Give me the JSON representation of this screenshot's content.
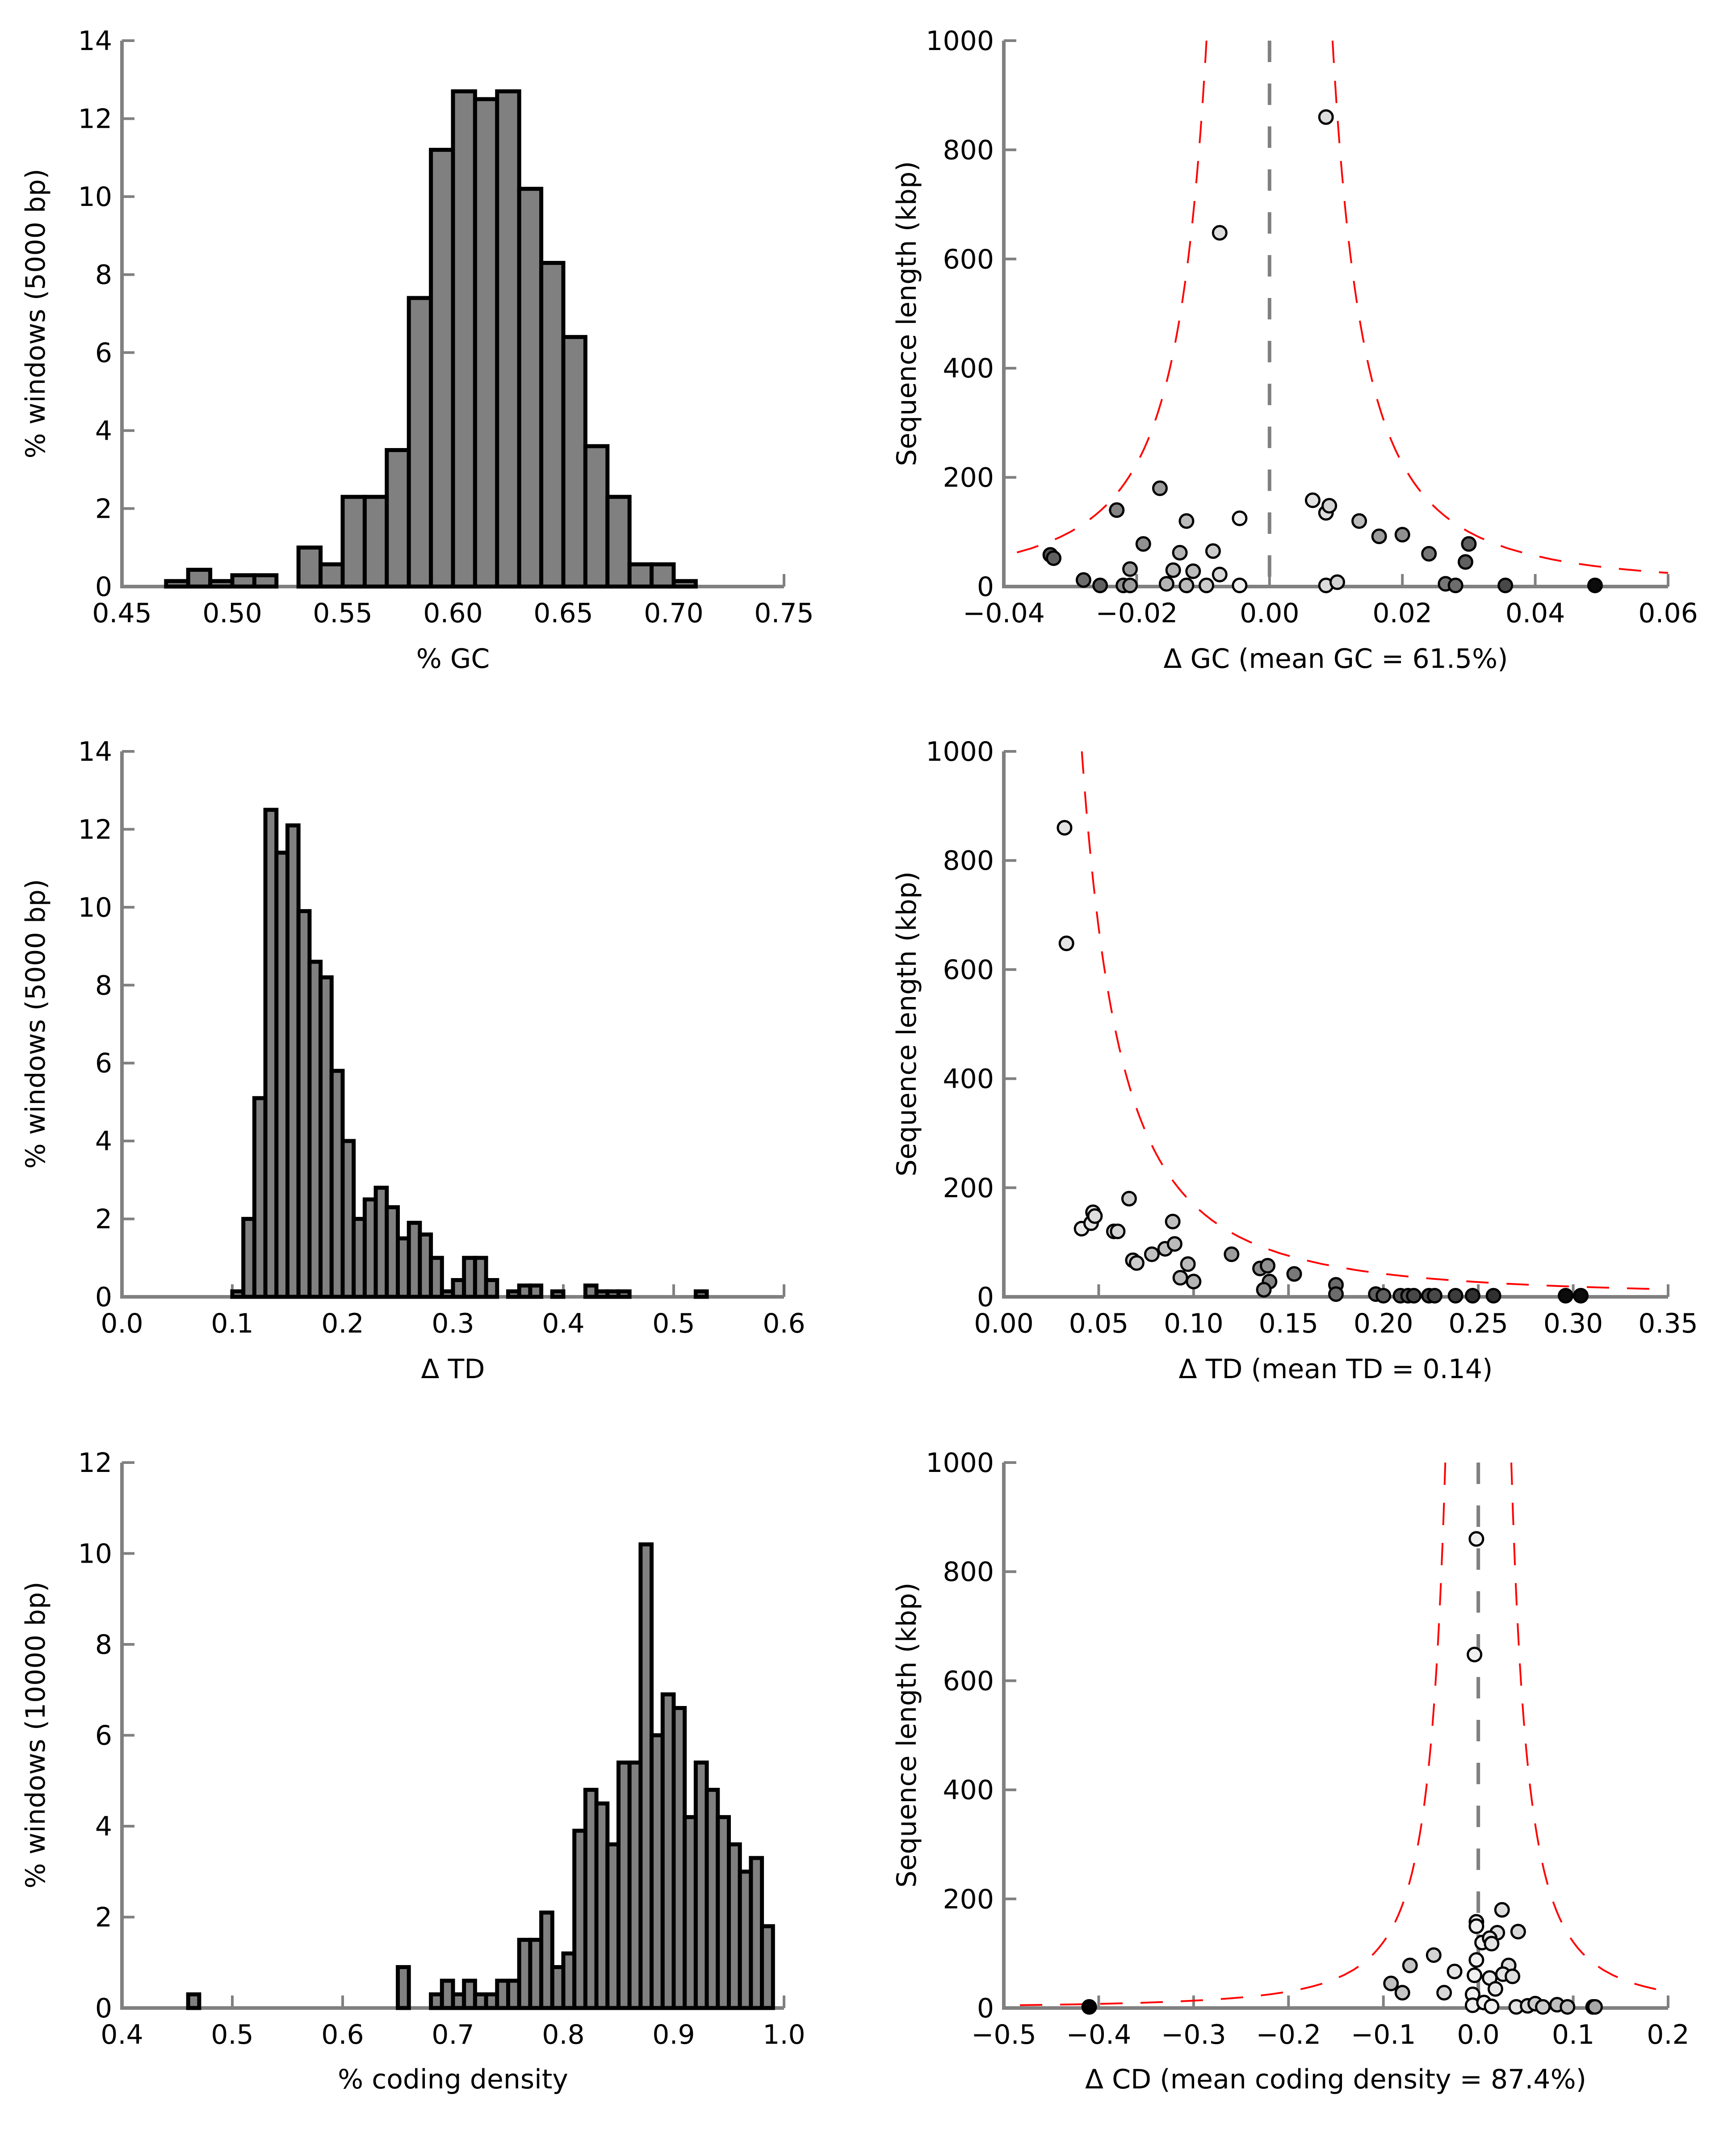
{
  "chart_data": [
    {
      "id": "gc-hist",
      "type": "bar",
      "xlabel": "% GC",
      "ylabel": "% windows (5000 bp)",
      "xlim": [
        0.45,
        0.75
      ],
      "ylim": [
        0,
        14
      ],
      "xticks": [
        0.45,
        0.5,
        0.55,
        0.6,
        0.65,
        0.7,
        0.75
      ],
      "xtick_labels": [
        "0.45",
        "0.50",
        "0.55",
        "0.60",
        "0.65",
        "0.70",
        "0.75"
      ],
      "yticks": [
        0,
        2,
        4,
        6,
        8,
        10,
        12,
        14
      ],
      "ytick_labels": [
        "0",
        "2",
        "4",
        "6",
        "8",
        "10",
        "12",
        "14"
      ],
      "bin_width": 0.01,
      "bins": [
        0.47,
        0.48,
        0.49,
        0.5,
        0.51,
        0.52,
        0.53,
        0.54,
        0.55,
        0.56,
        0.57,
        0.58,
        0.59,
        0.6,
        0.61,
        0.62,
        0.63,
        0.64,
        0.65,
        0.66,
        0.67,
        0.68,
        0.69,
        0.7
      ],
      "values": [
        0.14,
        0.43,
        0.14,
        0.29,
        0.29,
        0,
        1.0,
        0.57,
        2.3,
        2.3,
        3.5,
        7.4,
        11.2,
        12.7,
        12.5,
        12.7,
        10.2,
        8.3,
        6.4,
        3.6,
        2.3,
        0.57,
        0.57,
        0.14
      ]
    },
    {
      "id": "gc-scatter",
      "type": "scatter",
      "xlabel": "Δ GC (mean GC = 61.5%)",
      "ylabel": "Sequence length (kbp)",
      "xlim": [
        -0.04,
        0.06
      ],
      "ylim": [
        0,
        1000
      ],
      "xticks": [
        -0.04,
        -0.02,
        0.0,
        0.02,
        0.04,
        0.06
      ],
      "xtick_labels": [
        "−0.04",
        "−0.02",
        "0.00",
        "0.02",
        "0.04",
        "0.06"
      ],
      "yticks": [
        0,
        200,
        400,
        600,
        800,
        1000
      ],
      "ytick_labels": [
        "0",
        "200",
        "400",
        "600",
        "800",
        "1000"
      ],
      "reference_line_x": 0.0,
      "envelope": {
        "scale": 0.3,
        "center": 0.0,
        "side": "both"
      },
      "points": [
        {
          "x": 0.0085,
          "y": 860,
          "shade": 0.92
        },
        {
          "x": -0.0075,
          "y": 648,
          "shade": 0.92
        },
        {
          "x": -0.0165,
          "y": 180,
          "shade": 0.65
        },
        {
          "x": -0.023,
          "y": 140,
          "shade": 0.55
        },
        {
          "x": -0.0125,
          "y": 120,
          "shade": 0.78
        },
        {
          "x": -0.0045,
          "y": 125,
          "shade": 1.0
        },
        {
          "x": 0.0065,
          "y": 158,
          "shade": 0.94
        },
        {
          "x": 0.0085,
          "y": 135,
          "shade": 0.92
        },
        {
          "x": 0.009,
          "y": 148,
          "shade": 0.88
        },
        {
          "x": 0.0135,
          "y": 120,
          "shade": 0.78
        },
        {
          "x": 0.0165,
          "y": 92,
          "shade": 0.65
        },
        {
          "x": 0.02,
          "y": 95,
          "shade": 0.6
        },
        {
          "x": 0.024,
          "y": 60,
          "shade": 0.5
        },
        {
          "x": 0.03,
          "y": 78,
          "shade": 0.4
        },
        {
          "x": 0.0295,
          "y": 45,
          "shade": 0.4
        },
        {
          "x": -0.033,
          "y": 58,
          "shade": 0.35
        },
        {
          "x": -0.0325,
          "y": 52,
          "shade": 0.4
        },
        {
          "x": -0.019,
          "y": 78,
          "shade": 0.6
        },
        {
          "x": -0.0135,
          "y": 62,
          "shade": 0.75
        },
        {
          "x": -0.0085,
          "y": 65,
          "shade": 0.85
        },
        {
          "x": -0.0115,
          "y": 28,
          "shade": 0.78
        },
        {
          "x": -0.0145,
          "y": 30,
          "shade": 0.75
        },
        {
          "x": -0.0075,
          "y": 22,
          "shade": 0.9
        },
        {
          "x": -0.021,
          "y": 32,
          "shade": 0.65
        },
        {
          "x": -0.028,
          "y": 12,
          "shade": 0.45
        },
        {
          "x": -0.0255,
          "y": 2,
          "shade": 0.4
        },
        {
          "x": -0.022,
          "y": 2,
          "shade": 0.6
        },
        {
          "x": -0.021,
          "y": 2,
          "shade": 0.65
        },
        {
          "x": -0.0155,
          "y": 5,
          "shade": 0.75
        },
        {
          "x": -0.0125,
          "y": 2,
          "shade": 0.78
        },
        {
          "x": -0.0095,
          "y": 2,
          "shade": 0.85
        },
        {
          "x": -0.0045,
          "y": 2,
          "shade": 1.0
        },
        {
          "x": 0.0085,
          "y": 2,
          "shade": 0.92
        },
        {
          "x": 0.0102,
          "y": 8,
          "shade": 0.88
        },
        {
          "x": 0.0265,
          "y": 5,
          "shade": 0.5
        },
        {
          "x": 0.028,
          "y": 2,
          "shade": 0.45
        },
        {
          "x": 0.0355,
          "y": 2,
          "shade": 0.3
        },
        {
          "x": 0.049,
          "y": 2,
          "shade": 0.05
        }
      ]
    },
    {
      "id": "td-hist",
      "type": "bar",
      "xlabel": "Δ TD",
      "ylabel": "% windows (5000 bp)",
      "xlim": [
        0.0,
        0.6
      ],
      "ylim": [
        0,
        14
      ],
      "xticks": [
        0.0,
        0.1,
        0.2,
        0.3,
        0.4,
        0.5,
        0.6
      ],
      "xtick_labels": [
        "0.0",
        "0.1",
        "0.2",
        "0.3",
        "0.4",
        "0.5",
        "0.6"
      ],
      "yticks": [
        0,
        2,
        4,
        6,
        8,
        10,
        12,
        14
      ],
      "ytick_labels": [
        "0",
        "2",
        "4",
        "6",
        "8",
        "10",
        "12",
        "14"
      ],
      "bin_width": 0.01,
      "bins": [
        0.1,
        0.11,
        0.12,
        0.13,
        0.14,
        0.15,
        0.16,
        0.17,
        0.18,
        0.19,
        0.2,
        0.21,
        0.22,
        0.23,
        0.24,
        0.25,
        0.26,
        0.27,
        0.28,
        0.29,
        0.3,
        0.31,
        0.32,
        0.33,
        0.35,
        0.36,
        0.37,
        0.39,
        0.42,
        0.43,
        0.44,
        0.45,
        0.52
      ],
      "values": [
        0.14,
        2.0,
        5.1,
        12.5,
        11.4,
        12.1,
        9.9,
        8.6,
        8.2,
        5.8,
        4.0,
        2.0,
        2.5,
        2.8,
        2.3,
        1.5,
        1.9,
        1.6,
        1.0,
        0.14,
        0.43,
        1.0,
        1.0,
        0.43,
        0.14,
        0.29,
        0.29,
        0.14,
        0.29,
        0.14,
        0.14,
        0.14,
        0.14
      ]
    },
    {
      "id": "td-scatter",
      "type": "scatter",
      "xlabel": "Δ TD (mean TD = 0.14)",
      "ylabel": "Sequence length (kbp)",
      "xlim": [
        0.0,
        0.35
      ],
      "ylim": [
        0,
        1000
      ],
      "xticks": [
        0.0,
        0.05,
        0.1,
        0.15,
        0.2,
        0.25,
        0.3,
        0.35
      ],
      "xtick_labels": [
        "0.00",
        "0.05",
        "0.10",
        "0.15",
        "0.20",
        "0.25",
        "0.30",
        "0.35"
      ],
      "yticks": [
        0,
        200,
        400,
        600,
        800,
        1000
      ],
      "ytick_labels": [
        "0",
        "200",
        "400",
        "600",
        "800",
        "1000"
      ],
      "envelope": {
        "scale": 1.3,
        "center": 0.0,
        "side": "right"
      },
      "points": [
        {
          "x": 0.032,
          "y": 860,
          "shade": 0.95
        },
        {
          "x": 0.033,
          "y": 648,
          "shade": 0.95
        },
        {
          "x": 0.041,
          "y": 125,
          "shade": 0.98
        },
        {
          "x": 0.046,
          "y": 135,
          "shade": 0.95
        },
        {
          "x": 0.047,
          "y": 155,
          "shade": 0.93
        },
        {
          "x": 0.048,
          "y": 148,
          "shade": 0.93
        },
        {
          "x": 0.058,
          "y": 120,
          "shade": 0.9
        },
        {
          "x": 0.06,
          "y": 120,
          "shade": 0.88
        },
        {
          "x": 0.066,
          "y": 180,
          "shade": 0.85
        },
        {
          "x": 0.068,
          "y": 67,
          "shade": 0.85
        },
        {
          "x": 0.07,
          "y": 62,
          "shade": 0.85
        },
        {
          "x": 0.078,
          "y": 78,
          "shade": 0.8
        },
        {
          "x": 0.085,
          "y": 88,
          "shade": 0.8
        },
        {
          "x": 0.09,
          "y": 97,
          "shade": 0.78
        },
        {
          "x": 0.089,
          "y": 138,
          "shade": 0.8
        },
        {
          "x": 0.093,
          "y": 35,
          "shade": 0.78
        },
        {
          "x": 0.097,
          "y": 60,
          "shade": 0.78
        },
        {
          "x": 0.1,
          "y": 28,
          "shade": 0.75
        },
        {
          "x": 0.12,
          "y": 78,
          "shade": 0.65
        },
        {
          "x": 0.135,
          "y": 52,
          "shade": 0.6
        },
        {
          "x": 0.139,
          "y": 57,
          "shade": 0.6
        },
        {
          "x": 0.14,
          "y": 28,
          "shade": 0.55
        },
        {
          "x": 0.137,
          "y": 13,
          "shade": 0.6
        },
        {
          "x": 0.153,
          "y": 42,
          "shade": 0.5
        },
        {
          "x": 0.175,
          "y": 22,
          "shade": 0.45
        },
        {
          "x": 0.175,
          "y": 5,
          "shade": 0.45
        },
        {
          "x": 0.196,
          "y": 5,
          "shade": 0.4
        },
        {
          "x": 0.2,
          "y": 2,
          "shade": 0.4
        },
        {
          "x": 0.209,
          "y": 2,
          "shade": 0.35
        },
        {
          "x": 0.213,
          "y": 2,
          "shade": 0.35
        },
        {
          "x": 0.216,
          "y": 2,
          "shade": 0.3
        },
        {
          "x": 0.224,
          "y": 2,
          "shade": 0.3
        },
        {
          "x": 0.227,
          "y": 2,
          "shade": 0.3
        },
        {
          "x": 0.238,
          "y": 2,
          "shade": 0.25
        },
        {
          "x": 0.247,
          "y": 2,
          "shade": 0.2
        },
        {
          "x": 0.258,
          "y": 2,
          "shade": 0.2
        },
        {
          "x": 0.296,
          "y": 2,
          "shade": 0.05
        },
        {
          "x": 0.304,
          "y": 2,
          "shade": 0.05
        }
      ]
    },
    {
      "id": "cd-hist",
      "type": "bar",
      "xlabel": "% coding density",
      "ylabel": "% windows (10000 bp)",
      "xlim": [
        0.4,
        1.0
      ],
      "ylim": [
        0,
        12
      ],
      "xticks": [
        0.4,
        0.5,
        0.6,
        0.7,
        0.8,
        0.9,
        1.0
      ],
      "xtick_labels": [
        "0.4",
        "0.5",
        "0.6",
        "0.7",
        "0.8",
        "0.9",
        "1.0"
      ],
      "yticks": [
        0,
        2,
        4,
        6,
        8,
        10,
        12
      ],
      "ytick_labels": [
        "0",
        "2",
        "4",
        "6",
        "8",
        "10",
        "12"
      ],
      "bin_width": 0.01,
      "bins": [
        0.46,
        0.65,
        0.68,
        0.69,
        0.7,
        0.71,
        0.72,
        0.73,
        0.74,
        0.75,
        0.76,
        0.77,
        0.78,
        0.79,
        0.8,
        0.81,
        0.82,
        0.83,
        0.84,
        0.85,
        0.86,
        0.87,
        0.88,
        0.89,
        0.9,
        0.91,
        0.92,
        0.93,
        0.94,
        0.95,
        0.96,
        0.97,
        0.98
      ],
      "values": [
        0.3,
        0.9,
        0.3,
        0.6,
        0.3,
        0.6,
        0.3,
        0.3,
        0.6,
        0.6,
        1.5,
        1.5,
        2.1,
        0.9,
        1.2,
        3.9,
        4.8,
        4.5,
        3.6,
        5.4,
        5.4,
        10.2,
        6.0,
        6.9,
        6.6,
        4.2,
        5.4,
        4.8,
        4.2,
        3.6,
        3.0,
        3.3,
        1.8
      ]
    },
    {
      "id": "cd-scatter",
      "type": "scatter",
      "xlabel": "Δ CD (mean coding density = 87.4%)",
      "ylabel": "Sequence length (kbp)",
      "xlim": [
        -0.5,
        0.2
      ],
      "ylim": [
        0,
        1000
      ],
      "xticks": [
        -0.5,
        -0.4,
        -0.3,
        -0.2,
        -0.1,
        0.0,
        0.1,
        0.2
      ],
      "xtick_labels": [
        "−0.5",
        "−0.4",
        "−0.3",
        "−0.2",
        "−0.1",
        "0.0",
        "0.1",
        "0.2"
      ],
      "yticks": [
        0,
        200,
        400,
        600,
        800,
        1000
      ],
      "ytick_labels": [
        "0",
        "200",
        "400",
        "600",
        "800",
        "1000"
      ],
      "reference_line_x": 0.0,
      "envelope": {
        "scale": 1.1,
        "center": 0.0,
        "side": "both"
      },
      "points": [
        {
          "x": -0.002,
          "y": 860,
          "shade": 1.0
        },
        {
          "x": -0.004,
          "y": 648,
          "shade": 1.0
        },
        {
          "x": 0.025,
          "y": 180,
          "shade": 0.93
        },
        {
          "x": -0.002,
          "y": 158,
          "shade": 1.0
        },
        {
          "x": -0.002,
          "y": 150,
          "shade": 1.0
        },
        {
          "x": 0.042,
          "y": 140,
          "shade": 0.9
        },
        {
          "x": 0.02,
          "y": 138,
          "shade": 0.93
        },
        {
          "x": 0.004,
          "y": 120,
          "shade": 1.0
        },
        {
          "x": 0.012,
          "y": 128,
          "shade": 0.95
        },
        {
          "x": 0.014,
          "y": 118,
          "shade": 0.95
        },
        {
          "x": -0.047,
          "y": 97,
          "shade": 0.88
        },
        {
          "x": -0.002,
          "y": 88,
          "shade": 1.0
        },
        {
          "x": -0.072,
          "y": 78,
          "shade": 0.82
        },
        {
          "x": -0.025,
          "y": 67,
          "shade": 0.95
        },
        {
          "x": 0.032,
          "y": 78,
          "shade": 0.92
        },
        {
          "x": -0.004,
          "y": 60,
          "shade": 1.0
        },
        {
          "x": 0.012,
          "y": 55,
          "shade": 0.97
        },
        {
          "x": 0.026,
          "y": 62,
          "shade": 0.95
        },
        {
          "x": 0.036,
          "y": 58,
          "shade": 0.92
        },
        {
          "x": -0.092,
          "y": 45,
          "shade": 0.8
        },
        {
          "x": -0.08,
          "y": 28,
          "shade": 0.82
        },
        {
          "x": -0.036,
          "y": 28,
          "shade": 0.9
        },
        {
          "x": -0.006,
          "y": 25,
          "shade": 1.0
        },
        {
          "x": 0.018,
          "y": 35,
          "shade": 0.97
        },
        {
          "x": -0.006,
          "y": 5,
          "shade": 1.0
        },
        {
          "x": 0.006,
          "y": 10,
          "shade": 1.0
        },
        {
          "x": 0.014,
          "y": 3,
          "shade": 1.0
        },
        {
          "x": 0.04,
          "y": 2,
          "shade": 0.95
        },
        {
          "x": 0.052,
          "y": 4,
          "shade": 0.9
        },
        {
          "x": 0.06,
          "y": 8,
          "shade": 0.85
        },
        {
          "x": 0.068,
          "y": 2,
          "shade": 0.85
        },
        {
          "x": 0.083,
          "y": 6,
          "shade": 0.8
        },
        {
          "x": 0.094,
          "y": 2,
          "shade": 0.8
        },
        {
          "x": 0.121,
          "y": 2,
          "shade": 0.7
        },
        {
          "x": 0.123,
          "y": 2,
          "shade": 0.7
        },
        {
          "x": -0.41,
          "y": 2,
          "shade": 0.0
        }
      ]
    }
  ]
}
